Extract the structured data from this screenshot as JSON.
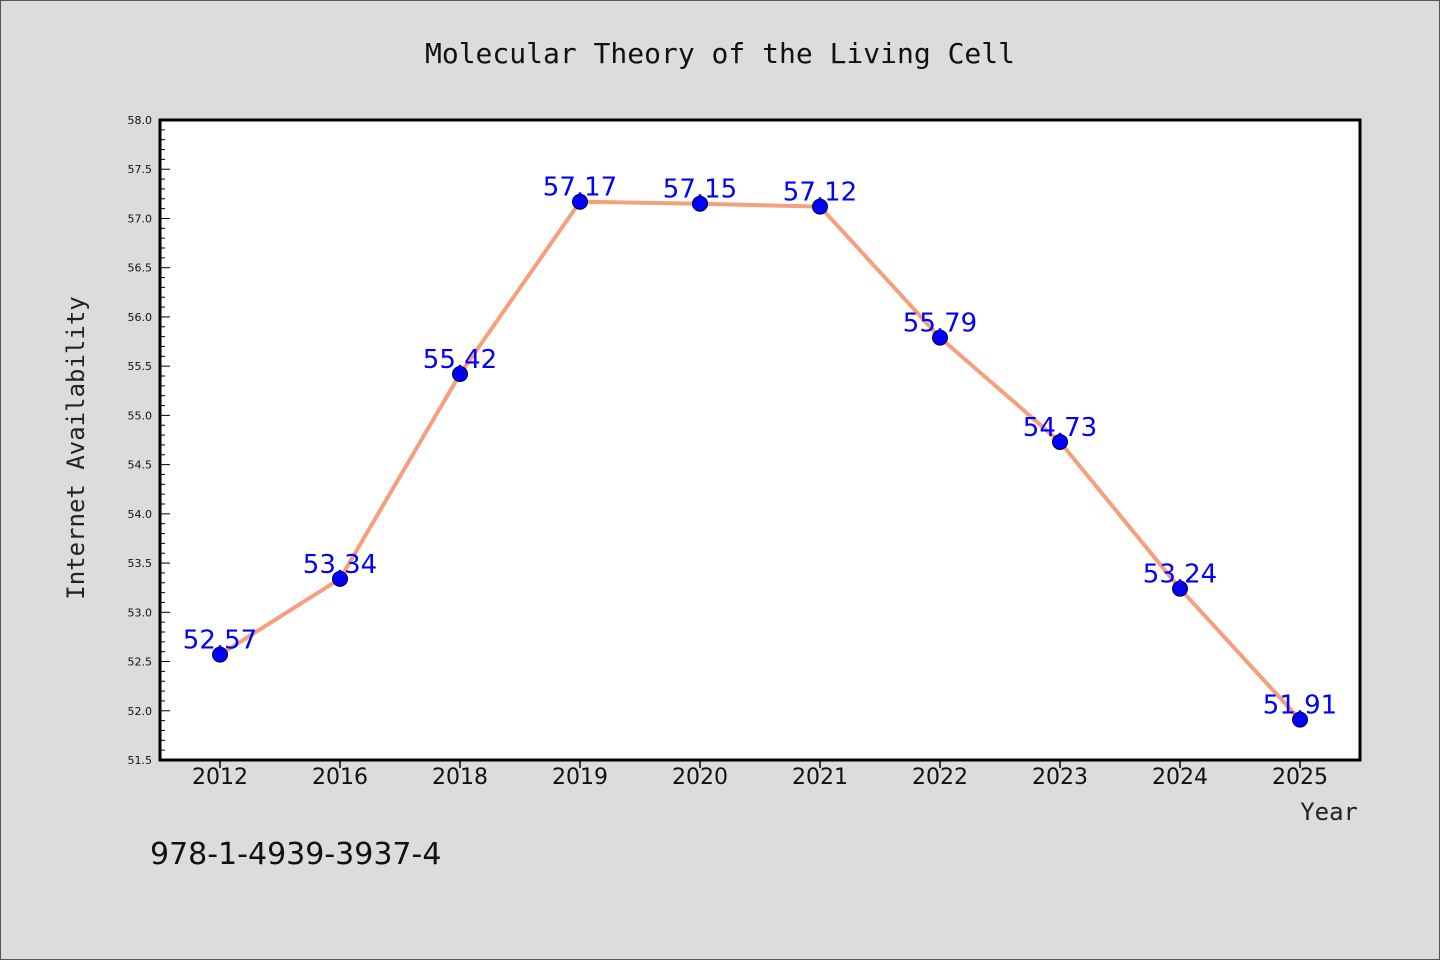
{
  "chart_data": {
    "type": "line",
    "title": "Molecular Theory of the Living Cell",
    "xlabel": "Year",
    "ylabel": "Internet Availability",
    "categories": [
      "2012",
      "2016",
      "2018",
      "2019",
      "2020",
      "2021",
      "2022",
      "2023",
      "2024",
      "2025"
    ],
    "values": [
      52.57,
      53.34,
      55.42,
      57.17,
      57.15,
      57.12,
      55.79,
      54.73,
      53.24,
      51.91
    ],
    "data_labels": [
      "52.57",
      "53.34",
      "55.42",
      "57.17",
      "57.15",
      "57.12",
      "55.79",
      "54.73",
      "53.24",
      "51.91"
    ],
    "ylim": [
      51.5,
      58.0
    ],
    "yticks": [
      "51.5",
      "52.0",
      "52.5",
      "53.0",
      "53.5",
      "54.0",
      "54.5",
      "55.0",
      "55.5",
      "56.0",
      "56.5",
      "57.0",
      "57.5",
      "58.0"
    ],
    "grid": false,
    "line_color": "#f4a07c",
    "marker_color": "#0000ff",
    "label_color": "#0000ff"
  },
  "footer": {
    "isbn": "978-1-4939-3937-4"
  }
}
